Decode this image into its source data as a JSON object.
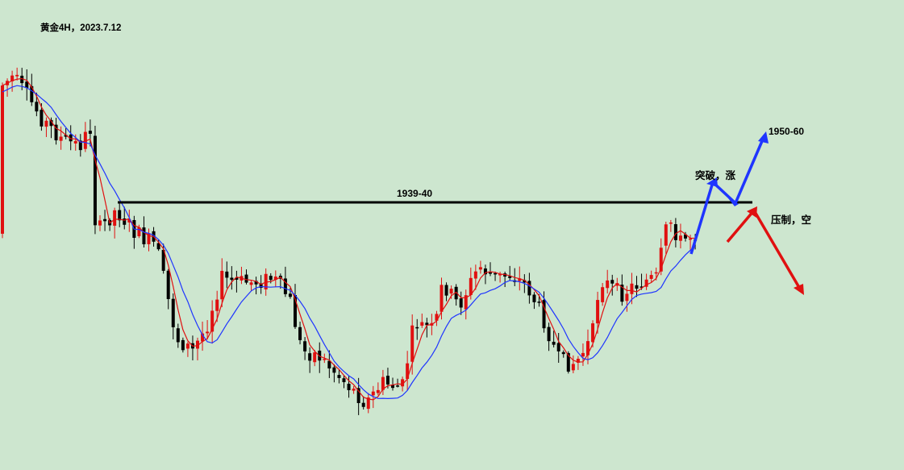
{
  "chart_data": {
    "type": "candlestick",
    "title": "黄金4H，2023.7.12",
    "background_color": "#cde6cf",
    "up_color": "#e01010",
    "down_color": "#000000",
    "grid": false,
    "legend": "none",
    "series": [
      {
        "color": "#e01010",
        "kind": "moving-average"
      },
      {
        "color": "#1f35ff",
        "kind": "moving-average"
      }
    ],
    "levels": [
      {
        "label": "1939-40",
        "color": "#000000"
      }
    ],
    "annotations": [
      {
        "text": "1950-60",
        "color": "#000000"
      },
      {
        "text": "突破，涨",
        "color": "#000000"
      },
      {
        "text": "压制，空",
        "color": "#000000"
      }
    ],
    "scenario_arrows": [
      {
        "name": "bullish-breakout-arrow",
        "color": "#1f35ff"
      },
      {
        "name": "bearish-rejection-arrow",
        "color": "#e01010"
      }
    ]
  }
}
